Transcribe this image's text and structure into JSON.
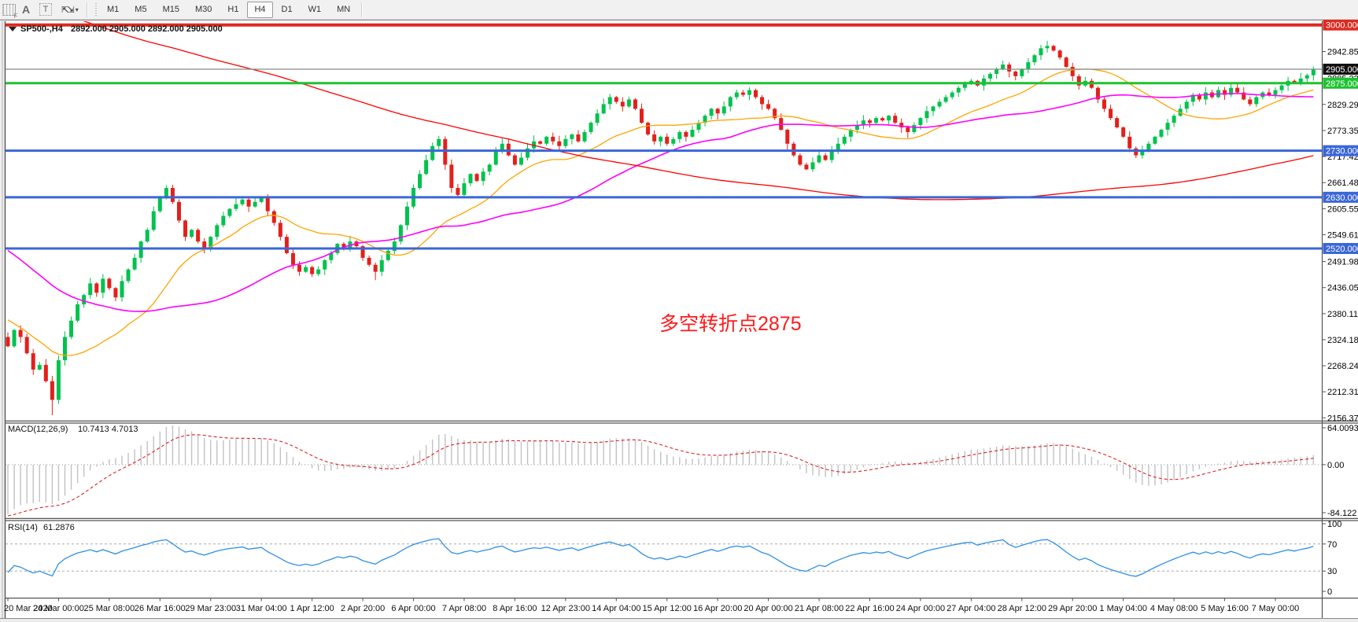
{
  "toolbar": {
    "tools": [
      {
        "name": "indicator-grid-icon",
        "glyph": "F"
      },
      {
        "name": "text-label-icon",
        "glyph": "A"
      },
      {
        "name": "text-box-icon",
        "glyph": "T"
      },
      {
        "name": "arrow-objects-icon",
        "glyph": "⇱⇲"
      }
    ],
    "timeframes": [
      "M1",
      "M5",
      "M15",
      "M30",
      "H1",
      "H4",
      "D1",
      "W1",
      "MN"
    ],
    "selected_timeframe": "H4"
  },
  "chart": {
    "title_symbol": "SP500-,H4",
    "title_ohlc": "2892.000 2905.000 2892.000 2905.000",
    "annotation": "多空转折点2875"
  },
  "price_axis": {
    "ticks": [
      "2942.855",
      "2885.225",
      "2829.290",
      "2773.355",
      "2717.420",
      "2661.485",
      "2605.550",
      "2549.615",
      "2491.985",
      "2436.050",
      "2380.115",
      "2324.180",
      "2268.245",
      "2212.310",
      "2156.375"
    ],
    "badges": [
      {
        "label": "3000.000",
        "price": 3000,
        "bg": "#DE2A20"
      },
      {
        "label": "2905.000",
        "price": 2905,
        "bg": "#111111"
      },
      {
        "label": "2875.000",
        "price": 2875,
        "bg": "#1CC32F"
      },
      {
        "label": "2730.000",
        "price": 2730,
        "bg": "#3A66D8"
      },
      {
        "label": "2630.000",
        "price": 2630,
        "bg": "#3A66D8"
      },
      {
        "label": "2520.000",
        "price": 2520,
        "bg": "#3A66D8"
      }
    ]
  },
  "time_axis": {
    "labels": [
      "20 Mar 2020",
      "24 Mar 00:00",
      "25 Mar 08:00",
      "26 Mar 16:00",
      "29 Mar 23:00",
      "31 Mar 04:00",
      "1 Apr 12:00",
      "2 Apr 20:00",
      "6 Apr 00:00",
      "7 Apr 08:00",
      "8 Apr 16:00",
      "12 Apr 23:00",
      "14 Apr 04:00",
      "15 Apr 12:00",
      "16 Apr 20:00",
      "20 Apr 00:00",
      "21 Apr 08:00",
      "22 Apr 16:00",
      "24 Apr 00:00",
      "27 Apr 04:00",
      "28 Apr 12:00",
      "29 Apr 20:00",
      "1 May 04:00",
      "4 May 08:00",
      "5 May 16:00",
      "7 May 00:00"
    ]
  },
  "macd_panel": {
    "label": "MACD(12,26,9)",
    "values": "10.7413 4.7013",
    "axis": [
      "64.0093",
      "0.00",
      "-84.122"
    ]
  },
  "rsi_panel": {
    "label": "RSI(14)",
    "values": "61.2876",
    "axis": [
      "100",
      "70",
      "30",
      "0"
    ]
  },
  "colors": {
    "bull": "#00C24E",
    "bear": "#E3201B",
    "level_red": "#DE2A20",
    "level_green": "#1CC32F",
    "level_blue": "#3A66D8",
    "current_price_line": "#8A8A8A",
    "ma_fast": "#FFA400",
    "ma_mid": "#FF00FF",
    "ma_slow": "#FF0000",
    "macd_hist": "#C2C2C2",
    "macd_signal": "#E02020",
    "rsi_line": "#2E8FE8",
    "annotation": "#FF1A1A"
  },
  "chart_data": {
    "type": "candlestick",
    "symbol": "SP500",
    "timeframe": "H4",
    "title": "SP500-,H4",
    "current_price": 2905,
    "bar_open_price": 2892,
    "visible_price_range": [
      2150,
      3015
    ],
    "horizontal_levels": [
      {
        "price": 3000,
        "color": "#DE2A20",
        "width": 4
      },
      {
        "price": 2875,
        "color": "#1CC32F",
        "width": 3
      },
      {
        "price": 2730,
        "color": "#3A66D8",
        "width": 3
      },
      {
        "price": 2630,
        "color": "#3A66D8",
        "width": 3
      },
      {
        "price": 2520,
        "color": "#3A66D8",
        "width": 3
      }
    ],
    "moving_averages": [
      {
        "period": 20,
        "color": "#FFA400"
      },
      {
        "period": 45,
        "color": "#FF00FF"
      },
      {
        "period": 200,
        "color": "#FF0000"
      }
    ],
    "indicators": {
      "macd": [
        12,
        26,
        9
      ],
      "rsi": [
        14
      ]
    },
    "macd_readout": [
      10.7413,
      4.7013
    ],
    "rsi_readout": 61.2876,
    "closes": [
      2310,
      2345,
      2330,
      2295,
      2260,
      2270,
      2235,
      2195,
      2280,
      2330,
      2365,
      2400,
      2420,
      2445,
      2425,
      2455,
      2435,
      2415,
      2450,
      2475,
      2500,
      2535,
      2560,
      2600,
      2630,
      2650,
      2620,
      2580,
      2545,
      2560,
      2535,
      2520,
      2545,
      2570,
      2590,
      2605,
      2615,
      2625,
      2610,
      2620,
      2630,
      2600,
      2575,
      2545,
      2510,
      2485,
      2470,
      2480,
      2465,
      2475,
      2495,
      2510,
      2530,
      2520,
      2535,
      2525,
      2500,
      2485,
      2470,
      2495,
      2515,
      2535,
      2570,
      2610,
      2650,
      2680,
      2710,
      2740,
      2755,
      2700,
      2650,
      2635,
      2660,
      2680,
      2665,
      2685,
      2700,
      2730,
      2745,
      2720,
      2700,
      2715,
      2735,
      2750,
      2745,
      2760,
      2750,
      2740,
      2755,
      2765,
      2750,
      2770,
      2790,
      2810,
      2830,
      2845,
      2835,
      2825,
      2840,
      2820,
      2790,
      2765,
      2750,
      2760,
      2745,
      2755,
      2770,
      2760,
      2775,
      2790,
      2805,
      2820,
      2810,
      2825,
      2845,
      2855,
      2850,
      2860,
      2845,
      2830,
      2820,
      2800,
      2775,
      2745,
      2720,
      2700,
      2690,
      2705,
      2720,
      2710,
      2730,
      2745,
      2760,
      2775,
      2785,
      2795,
      2790,
      2800,
      2795,
      2805,
      2790,
      2780,
      2770,
      2785,
      2800,
      2815,
      2825,
      2835,
      2845,
      2855,
      2865,
      2875,
      2880,
      2870,
      2885,
      2895,
      2905,
      2915,
      2900,
      2890,
      2905,
      2920,
      2935,
      2950,
      2955,
      2945,
      2930,
      2910,
      2890,
      2870,
      2880,
      2865,
      2840,
      2820,
      2800,
      2780,
      2760,
      2735,
      2720,
      2730,
      2745,
      2760,
      2775,
      2790,
      2805,
      2820,
      2835,
      2850,
      2840,
      2855,
      2845,
      2860,
      2850,
      2865,
      2855,
      2840,
      2830,
      2845,
      2855,
      2850,
      2860,
      2870,
      2880,
      2875,
      2885,
      2892,
      2905
    ]
  }
}
